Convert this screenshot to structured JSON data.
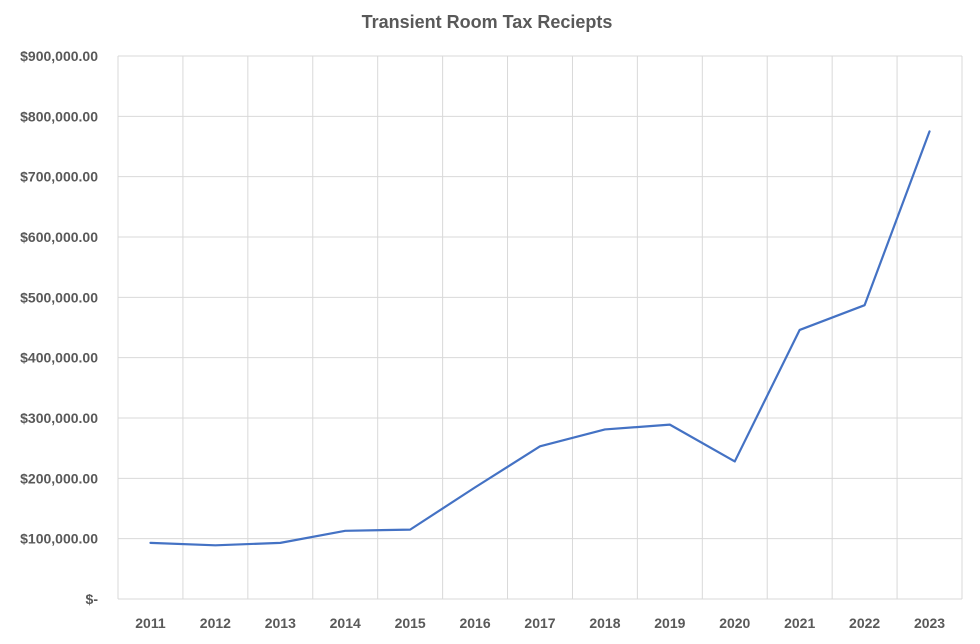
{
  "chart_data": {
    "type": "line",
    "title": "Transient Room Tax Reciepts",
    "xlabel": "",
    "ylabel": "",
    "categories": [
      "2011",
      "2012",
      "2013",
      "2014",
      "2015",
      "2016",
      "2017",
      "2018",
      "2019",
      "2020",
      "2021",
      "2022",
      "2023"
    ],
    "series": [
      {
        "values": [
          93000,
          89000,
          93000,
          113000,
          115000,
          185000,
          253000,
          281000,
          289000,
          228000,
          446000,
          487000,
          775000
        ]
      }
    ],
    "ylim": [
      0,
      900000
    ],
    "y_ticks": [
      0,
      100000,
      200000,
      300000,
      400000,
      500000,
      600000,
      700000,
      800000,
      900000
    ],
    "y_tick_labels": [
      "$-",
      "$100,000.00",
      "$200,000.00",
      "$300,000.00",
      "$400,000.00",
      "$500,000.00",
      "$600,000.00",
      "$700,000.00",
      "$800,000.00",
      "$900,000.00"
    ],
    "grid": true,
    "legend": false,
    "colors": {
      "line": "#4472c4",
      "grid": "#d9d9d9",
      "text": "#595959"
    }
  }
}
